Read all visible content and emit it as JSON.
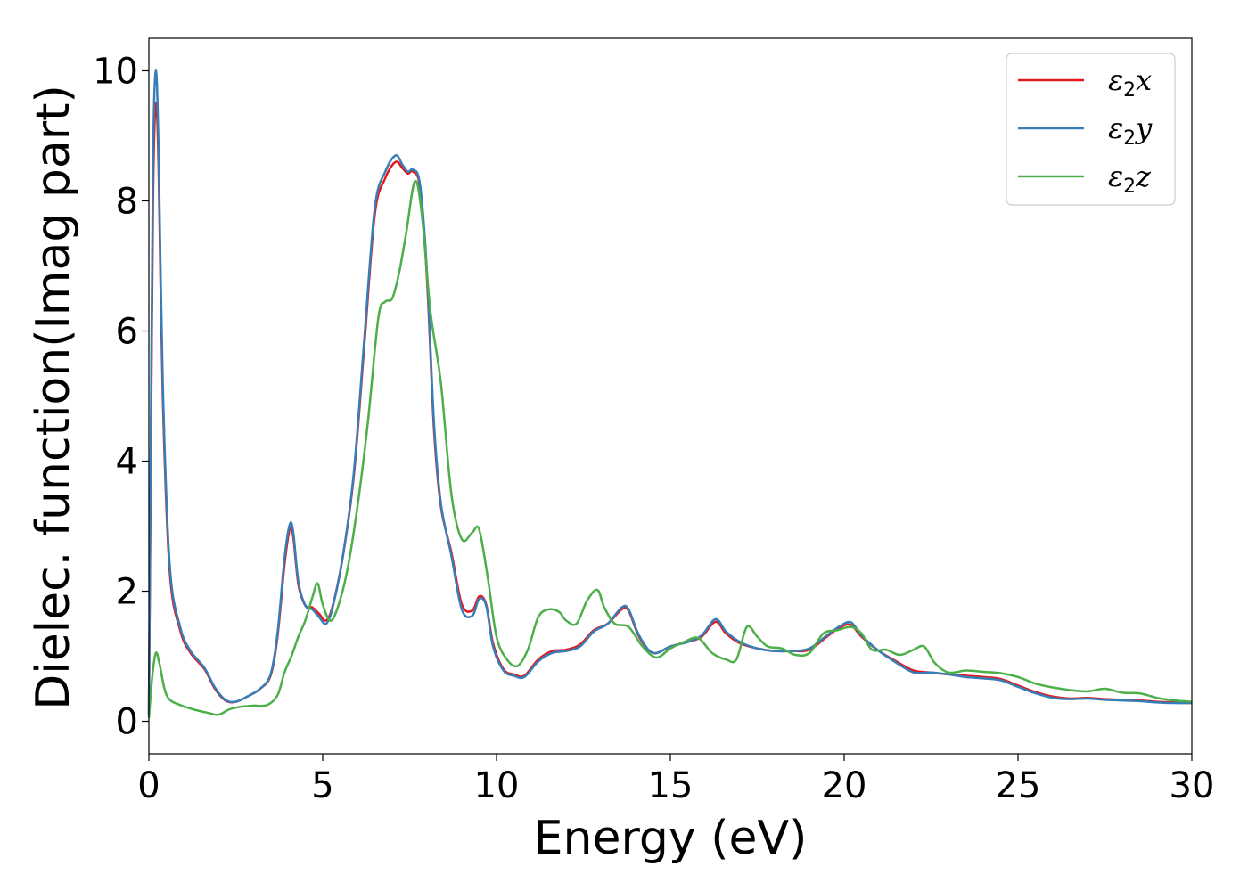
{
  "chart_data": {
    "type": "line",
    "title": "",
    "xlabel": "Energy (eV)",
    "ylabel": "Dielec. function(Imag part)",
    "xlim": [
      0,
      30
    ],
    "ylim": [
      -0.5,
      10.5
    ],
    "xticks": [
      0,
      5,
      10,
      15,
      20,
      25,
      30
    ],
    "yticks": [
      0,
      2,
      4,
      6,
      8,
      10
    ],
    "grid": false,
    "legend_position": "top-right",
    "series": [
      {
        "name": "ε2x",
        "legend": {
          "symbol": "ε",
          "sub": "2",
          "axis": "x"
        },
        "color": "#e41a1c",
        "x": [
          0,
          0.05,
          0.12,
          0.2,
          0.28,
          0.4,
          0.6,
          0.9,
          1.2,
          1.6,
          1.9,
          2.2,
          2.5,
          2.9,
          3.2,
          3.5,
          3.7,
          3.9,
          4.05,
          4.15,
          4.3,
          4.5,
          4.7,
          4.9,
          5.1,
          5.3,
          5.6,
          5.9,
          6.2,
          6.5,
          6.8,
          7.1,
          7.3,
          7.45,
          7.6,
          7.8,
          8.0,
          8.2,
          8.4,
          8.7,
          9.0,
          9.3,
          9.5,
          9.7,
          9.9,
          10.2,
          10.5,
          10.8,
          11.2,
          11.6,
          12.0,
          12.4,
          12.8,
          13.2,
          13.6,
          13.8,
          14.1,
          14.5,
          15.0,
          15.5,
          15.9,
          16.3,
          16.6,
          17.0,
          17.5,
          18.0,
          18.5,
          19.0,
          19.5,
          19.9,
          20.2,
          20.5,
          21.0,
          21.5,
          22.0,
          22.5,
          23.0,
          23.5,
          24.0,
          24.5,
          25.0,
          25.5,
          26.0,
          26.5,
          27.0,
          27.5,
          28.0,
          28.5,
          29.0,
          29.5,
          30.0
        ],
        "y": [
          0.1,
          3.5,
          8.0,
          9.5,
          8.5,
          5.0,
          2.3,
          1.4,
          1.05,
          0.8,
          0.5,
          0.32,
          0.3,
          0.4,
          0.5,
          0.7,
          1.3,
          2.4,
          2.95,
          2.85,
          2.1,
          1.78,
          1.75,
          1.65,
          1.55,
          1.8,
          2.6,
          3.8,
          5.8,
          7.8,
          8.35,
          8.6,
          8.5,
          8.42,
          8.45,
          8.2,
          6.8,
          4.5,
          3.3,
          2.6,
          1.8,
          1.7,
          1.92,
          1.8,
          1.2,
          0.8,
          0.72,
          0.7,
          0.95,
          1.08,
          1.1,
          1.18,
          1.4,
          1.5,
          1.72,
          1.7,
          1.3,
          1.05,
          1.15,
          1.22,
          1.3,
          1.53,
          1.35,
          1.2,
          1.12,
          1.08,
          1.08,
          1.1,
          1.3,
          1.45,
          1.48,
          1.3,
          1.08,
          0.92,
          0.78,
          0.75,
          0.72,
          0.7,
          0.68,
          0.65,
          0.55,
          0.45,
          0.38,
          0.35,
          0.36,
          0.34,
          0.33,
          0.32,
          0.3,
          0.29,
          0.28
        ]
      },
      {
        "name": "ε2y",
        "legend": {
          "symbol": "ε",
          "sub": "2",
          "axis": "y"
        },
        "color": "#377eb8",
        "x": [
          0,
          0.05,
          0.12,
          0.2,
          0.28,
          0.4,
          0.6,
          0.9,
          1.2,
          1.6,
          1.9,
          2.2,
          2.5,
          2.9,
          3.2,
          3.5,
          3.7,
          3.9,
          4.05,
          4.15,
          4.3,
          4.5,
          4.7,
          4.9,
          5.1,
          5.3,
          5.6,
          5.9,
          6.2,
          6.5,
          6.8,
          7.1,
          7.3,
          7.45,
          7.6,
          7.8,
          8.0,
          8.2,
          8.4,
          8.7,
          9.0,
          9.3,
          9.5,
          9.7,
          9.9,
          10.2,
          10.5,
          10.8,
          11.2,
          11.6,
          12.0,
          12.4,
          12.8,
          13.2,
          13.6,
          13.8,
          14.1,
          14.5,
          15.0,
          15.5,
          15.9,
          16.3,
          16.6,
          17.0,
          17.5,
          18.0,
          18.5,
          19.0,
          19.5,
          19.9,
          20.2,
          20.5,
          21.0,
          21.5,
          22.0,
          22.5,
          23.0,
          23.5,
          24.0,
          24.5,
          25.0,
          25.5,
          26.0,
          26.5,
          27.0,
          27.5,
          28.0,
          28.5,
          29.0,
          29.5,
          30.0
        ],
        "y": [
          0.1,
          3.8,
          8.6,
          10.0,
          8.8,
          5.2,
          2.4,
          1.45,
          1.08,
          0.82,
          0.52,
          0.33,
          0.3,
          0.4,
          0.5,
          0.72,
          1.35,
          2.5,
          3.02,
          2.92,
          2.15,
          1.78,
          1.72,
          1.6,
          1.5,
          1.78,
          2.6,
          3.85,
          5.9,
          7.9,
          8.45,
          8.7,
          8.55,
          8.45,
          8.48,
          8.25,
          6.9,
          4.6,
          3.35,
          2.55,
          1.72,
          1.62,
          1.88,
          1.78,
          1.15,
          0.78,
          0.7,
          0.68,
          0.92,
          1.05,
          1.08,
          1.15,
          1.38,
          1.5,
          1.75,
          1.72,
          1.32,
          1.05,
          1.15,
          1.22,
          1.32,
          1.57,
          1.38,
          1.22,
          1.12,
          1.08,
          1.08,
          1.12,
          1.32,
          1.47,
          1.52,
          1.32,
          1.08,
          0.9,
          0.75,
          0.75,
          0.72,
          0.68,
          0.66,
          0.63,
          0.53,
          0.43,
          0.36,
          0.34,
          0.35,
          0.33,
          0.32,
          0.31,
          0.29,
          0.28,
          0.28
        ]
      },
      {
        "name": "ε2z",
        "legend": {
          "symbol": "ε",
          "sub": "2",
          "axis": "z"
        },
        "color": "#4daf4a",
        "x": [
          0,
          0.1,
          0.2,
          0.3,
          0.45,
          0.6,
          0.9,
          1.3,
          1.7,
          2.0,
          2.3,
          2.6,
          3.0,
          3.4,
          3.7,
          3.9,
          4.1,
          4.3,
          4.5,
          4.7,
          4.85,
          5.0,
          5.2,
          5.4,
          5.7,
          6.0,
          6.3,
          6.6,
          6.8,
          7.0,
          7.2,
          7.4,
          7.65,
          7.85,
          8.1,
          8.4,
          8.7,
          9.0,
          9.3,
          9.5,
          9.75,
          10.0,
          10.3,
          10.6,
          10.9,
          11.2,
          11.5,
          11.8,
          12.0,
          12.3,
          12.6,
          12.9,
          13.1,
          13.4,
          13.8,
          14.2,
          14.6,
          15.0,
          15.4,
          15.8,
          16.2,
          16.6,
          16.9,
          17.2,
          17.5,
          17.8,
          18.2,
          18.6,
          19.0,
          19.4,
          19.8,
          20.2,
          20.5,
          20.8,
          21.2,
          21.6,
          22.0,
          22.3,
          22.6,
          23.0,
          23.5,
          24.0,
          24.5,
          25.0,
          25.5,
          26.0,
          26.5,
          27.0,
          27.5,
          28.0,
          28.5,
          29.0,
          29.5,
          30.0
        ],
        "y": [
          0.05,
          0.7,
          1.05,
          0.9,
          0.5,
          0.33,
          0.25,
          0.18,
          0.13,
          0.1,
          0.18,
          0.22,
          0.24,
          0.25,
          0.4,
          0.75,
          1.0,
          1.3,
          1.55,
          1.9,
          2.12,
          1.8,
          1.55,
          1.7,
          2.3,
          3.3,
          4.6,
          6.2,
          6.45,
          6.5,
          6.9,
          7.5,
          8.3,
          7.8,
          6.3,
          5.2,
          3.5,
          2.8,
          2.9,
          2.95,
          2.2,
          1.3,
          0.95,
          0.85,
          1.1,
          1.6,
          1.72,
          1.68,
          1.55,
          1.5,
          1.85,
          2.02,
          1.75,
          1.5,
          1.45,
          1.15,
          0.98,
          1.12,
          1.22,
          1.28,
          1.05,
          0.95,
          0.95,
          1.45,
          1.3,
          1.15,
          1.12,
          1.02,
          1.05,
          1.35,
          1.4,
          1.45,
          1.35,
          1.1,
          1.1,
          1.02,
          1.1,
          1.15,
          0.9,
          0.75,
          0.78,
          0.76,
          0.74,
          0.68,
          0.58,
          0.52,
          0.48,
          0.46,
          0.5,
          0.44,
          0.43,
          0.36,
          0.32,
          0.3
        ]
      }
    ]
  }
}
